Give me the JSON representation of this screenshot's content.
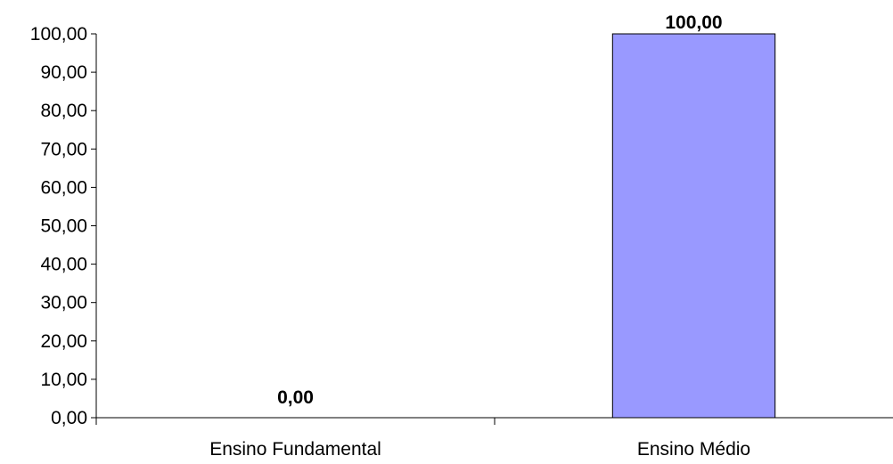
{
  "chart_data": {
    "type": "bar",
    "categories": [
      "Ensino Fundamental",
      "Ensino Médio"
    ],
    "values": [
      0,
      100
    ],
    "data_labels": [
      "0,00",
      "100,00"
    ],
    "y_tick_labels": [
      "0,00",
      "10,00",
      "20,00",
      "30,00",
      "40,00",
      "50,00",
      "60,00",
      "70,00",
      "80,00",
      "90,00",
      "100,00"
    ],
    "y_ticks": [
      0,
      10,
      20,
      30,
      40,
      50,
      60,
      70,
      80,
      90,
      100
    ],
    "ylim": [
      0,
      100
    ],
    "title": "",
    "xlabel": "",
    "ylabel": "",
    "grid": false,
    "legend": "none",
    "colors": {
      "bar_fill": "#9999ff",
      "bar_stroke": "#000000",
      "axis": "#000000"
    }
  }
}
